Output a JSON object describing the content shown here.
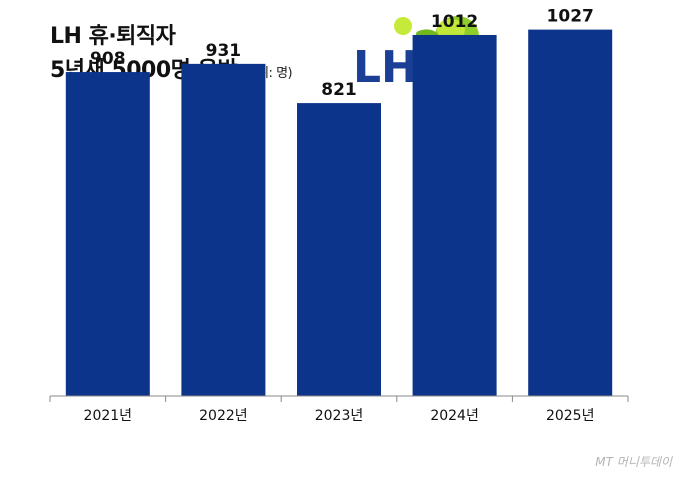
{
  "header": {
    "title_line1": "LH 휴·퇴직자",
    "title_line2": "5년새 5000명 육박",
    "unit_note": "(단위: 명)"
  },
  "logo": {
    "text": "LH",
    "icon": "lh-logo-leaf-icon"
  },
  "source": "MT 머니투데이",
  "colors": {
    "bar": "#0b348a",
    "logo_text": "#1b3f94",
    "logo_green_light": "#c6ea3a",
    "logo_green_dark": "#72b81f"
  },
  "chart_data": {
    "type": "bar",
    "categories": [
      "2021년",
      "2022년",
      "2023년",
      "2024년",
      "2025년"
    ],
    "values": [
      908,
      931,
      821,
      1012,
      1027
    ],
    "title": "LH 휴·퇴직자 5년새 5000명 육박",
    "unit": "(단위: 명)",
    "xlabel": "",
    "ylabel": "",
    "ylim": [
      0,
      1110
    ],
    "grid": false,
    "data_labels": true
  }
}
